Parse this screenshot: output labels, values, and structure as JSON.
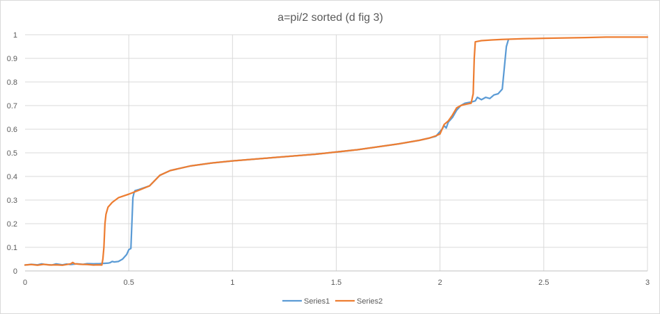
{
  "chart_data": {
    "type": "line",
    "title": "a=pi/2 sorted (d fig 3)",
    "xlabel": "",
    "ylabel": "",
    "xlim": [
      0,
      3
    ],
    "ylim": [
      0,
      1
    ],
    "x_ticks": [
      "0",
      "0.5",
      "1",
      "1.5",
      "2",
      "2.5",
      "3"
    ],
    "y_ticks": [
      "0",
      "0.1",
      "0.2",
      "0.3",
      "0.4",
      "0.5",
      "0.6",
      "0.7",
      "0.8",
      "0.9",
      "1"
    ],
    "grid": true,
    "legend_position": "bottom",
    "series": [
      {
        "name": "Series1",
        "color": "#5b9bd5",
        "points": [
          [
            0.0,
            0.025
          ],
          [
            0.03,
            0.028
          ],
          [
            0.06,
            0.026
          ],
          [
            0.08,
            0.03
          ],
          [
            0.1,
            0.027
          ],
          [
            0.13,
            0.025
          ],
          [
            0.15,
            0.03
          ],
          [
            0.18,
            0.026
          ],
          [
            0.2,
            0.029
          ],
          [
            0.22,
            0.027
          ],
          [
            0.25,
            0.03
          ],
          [
            0.28,
            0.028
          ],
          [
            0.3,
            0.031
          ],
          [
            0.33,
            0.03
          ],
          [
            0.36,
            0.031
          ],
          [
            0.38,
            0.032
          ],
          [
            0.4,
            0.033
          ],
          [
            0.41,
            0.035
          ],
          [
            0.42,
            0.04
          ],
          [
            0.43,
            0.038
          ],
          [
            0.45,
            0.04
          ],
          [
            0.46,
            0.045
          ],
          [
            0.47,
            0.05
          ],
          [
            0.48,
            0.06
          ],
          [
            0.49,
            0.07
          ],
          [
            0.5,
            0.09
          ],
          [
            0.51,
            0.095
          ],
          [
            0.515,
            0.2
          ],
          [
            0.52,
            0.31
          ],
          [
            0.525,
            0.33
          ],
          [
            0.53,
            0.34
          ],
          [
            0.55,
            0.345
          ],
          [
            0.6,
            0.36
          ],
          [
            0.65,
            0.405
          ],
          [
            0.7,
            0.425
          ],
          [
            0.8,
            0.445
          ],
          [
            0.9,
            0.457
          ],
          [
            1.0,
            0.466
          ],
          [
            1.2,
            0.48
          ],
          [
            1.4,
            0.494
          ],
          [
            1.6,
            0.513
          ],
          [
            1.8,
            0.538
          ],
          [
            1.9,
            0.553
          ],
          [
            1.95,
            0.563
          ],
          [
            1.98,
            0.57
          ],
          [
            2.0,
            0.59
          ],
          [
            2.01,
            0.6
          ],
          [
            2.02,
            0.615
          ],
          [
            2.03,
            0.605
          ],
          [
            2.04,
            0.63
          ],
          [
            2.06,
            0.65
          ],
          [
            2.08,
            0.68
          ],
          [
            2.1,
            0.7
          ],
          [
            2.12,
            0.71
          ],
          [
            2.15,
            0.715
          ],
          [
            2.17,
            0.72
          ],
          [
            2.18,
            0.735
          ],
          [
            2.2,
            0.725
          ],
          [
            2.22,
            0.735
          ],
          [
            2.24,
            0.73
          ],
          [
            2.26,
            0.745
          ],
          [
            2.28,
            0.75
          ],
          [
            2.3,
            0.77
          ],
          [
            2.32,
            0.95
          ],
          [
            2.33,
            0.98
          ]
        ]
      },
      {
        "name": "Series2",
        "color": "#ed7d31",
        "points": [
          [
            0.0,
            0.025
          ],
          [
            0.03,
            0.027
          ],
          [
            0.06,
            0.024
          ],
          [
            0.09,
            0.028
          ],
          [
            0.12,
            0.025
          ],
          [
            0.15,
            0.026
          ],
          [
            0.18,
            0.024
          ],
          [
            0.2,
            0.027
          ],
          [
            0.22,
            0.03
          ],
          [
            0.23,
            0.036
          ],
          [
            0.24,
            0.03
          ],
          [
            0.27,
            0.028
          ],
          [
            0.3,
            0.027
          ],
          [
            0.33,
            0.025
          ],
          [
            0.35,
            0.026
          ],
          [
            0.37,
            0.025
          ],
          [
            0.375,
            0.05
          ],
          [
            0.38,
            0.1
          ],
          [
            0.385,
            0.2
          ],
          [
            0.39,
            0.24
          ],
          [
            0.4,
            0.27
          ],
          [
            0.42,
            0.29
          ],
          [
            0.45,
            0.31
          ],
          [
            0.5,
            0.325
          ],
          [
            0.55,
            0.342
          ],
          [
            0.6,
            0.36
          ],
          [
            0.65,
            0.405
          ],
          [
            0.7,
            0.425
          ],
          [
            0.8,
            0.445
          ],
          [
            0.9,
            0.457
          ],
          [
            1.0,
            0.466
          ],
          [
            1.2,
            0.48
          ],
          [
            1.4,
            0.494
          ],
          [
            1.6,
            0.513
          ],
          [
            1.8,
            0.538
          ],
          [
            1.9,
            0.553
          ],
          [
            1.95,
            0.563
          ],
          [
            1.98,
            0.572
          ],
          [
            2.0,
            0.58
          ],
          [
            2.01,
            0.6
          ],
          [
            2.02,
            0.62
          ],
          [
            2.04,
            0.635
          ],
          [
            2.06,
            0.66
          ],
          [
            2.08,
            0.69
          ],
          [
            2.1,
            0.7
          ],
          [
            2.12,
            0.705
          ],
          [
            2.15,
            0.71
          ],
          [
            2.16,
            0.75
          ],
          [
            2.165,
            0.9
          ],
          [
            2.17,
            0.97
          ],
          [
            2.2,
            0.975
          ],
          [
            2.25,
            0.978
          ],
          [
            2.3,
            0.98
          ],
          [
            2.4,
            0.983
          ],
          [
            2.5,
            0.985
          ],
          [
            2.7,
            0.988
          ],
          [
            2.8,
            0.99
          ],
          [
            3.0,
            0.99
          ]
        ]
      }
    ]
  }
}
